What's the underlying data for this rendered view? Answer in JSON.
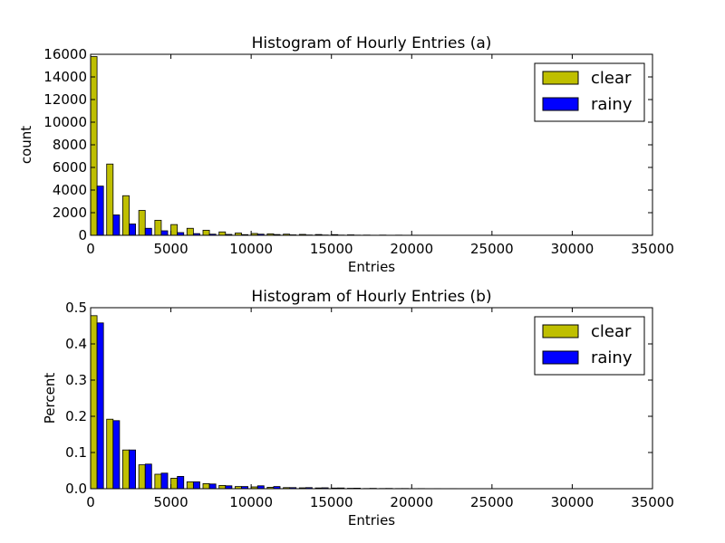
{
  "colors": {
    "clear": "#bfbf00",
    "rainy": "#0000ff",
    "background": "#ffffff",
    "axis": "#000000"
  },
  "chart_data": [
    {
      "type": "bar",
      "title": "Histogram of Hourly Entries (a)",
      "xlabel": "Entries",
      "ylabel": "count",
      "xlim": [
        0,
        35000
      ],
      "ylim": [
        0,
        16000
      ],
      "xticks": [
        "0",
        "5000",
        "10000",
        "15000",
        "20000",
        "25000",
        "30000",
        "35000"
      ],
      "xtick_values": [
        0,
        5000,
        10000,
        15000,
        20000,
        25000,
        30000,
        35000
      ],
      "yticks": [
        "0",
        "2000",
        "4000",
        "6000",
        "8000",
        "10000",
        "12000",
        "14000",
        "16000"
      ],
      "ytick_values": [
        0,
        2000,
        4000,
        6000,
        8000,
        10000,
        12000,
        14000,
        16000
      ],
      "grid": false,
      "legend_position": "top-right",
      "bin_width": 1000,
      "bin_starts": [
        0,
        1000,
        2000,
        3000,
        4000,
        5000,
        6000,
        7000,
        8000,
        9000,
        10000,
        11000,
        12000,
        13000,
        14000,
        15000,
        16000,
        17000,
        18000,
        19000,
        20000,
        21000,
        22000,
        23000,
        24000,
        25000,
        26000,
        27000,
        28000,
        29000,
        30000,
        31000,
        32000
      ],
      "series": [
        {
          "name": "clear",
          "color_key": "clear",
          "values": [
            15800,
            6300,
            3500,
            2200,
            1330,
            950,
            620,
            450,
            300,
            200,
            160,
            130,
            100,
            80,
            70,
            60,
            40,
            20,
            20,
            15,
            10,
            8,
            6,
            5,
            4,
            3,
            3,
            2,
            2,
            2,
            1,
            1,
            1
          ]
        },
        {
          "name": "rainy",
          "color_key": "rainy",
          "values": [
            4350,
            1800,
            1000,
            620,
            400,
            240,
            150,
            100,
            80,
            60,
            100,
            70,
            40,
            30,
            25,
            20,
            15,
            10,
            8,
            6,
            4,
            3,
            3,
            2,
            2,
            1,
            1,
            1,
            1,
            0,
            0,
            0,
            0
          ]
        }
      ]
    },
    {
      "type": "bar",
      "title": "Histogram of Hourly Entries (b)",
      "xlabel": "Entries",
      "ylabel": "Percent",
      "xlim": [
        0,
        35000
      ],
      "ylim": [
        0,
        0.5
      ],
      "xticks": [
        "0",
        "5000",
        "10000",
        "15000",
        "20000",
        "25000",
        "30000",
        "35000"
      ],
      "xtick_values": [
        0,
        5000,
        10000,
        15000,
        20000,
        25000,
        30000,
        35000
      ],
      "yticks": [
        "0.0",
        "0.1",
        "0.2",
        "0.3",
        "0.4",
        "0.5"
      ],
      "ytick_values": [
        0,
        0.1,
        0.2,
        0.3,
        0.4,
        0.5
      ],
      "grid": false,
      "legend_position": "top-right",
      "bin_width": 1000,
      "bin_starts": [
        0,
        1000,
        2000,
        3000,
        4000,
        5000,
        6000,
        7000,
        8000,
        9000,
        10000,
        11000,
        12000,
        13000,
        14000,
        15000,
        16000,
        17000,
        18000,
        19000,
        20000,
        21000,
        22000,
        23000,
        24000,
        25000,
        26000,
        27000,
        28000,
        29000,
        30000,
        31000,
        32000
      ],
      "series": [
        {
          "name": "clear",
          "color_key": "clear",
          "values": [
            0.478,
            0.192,
            0.107,
            0.066,
            0.04,
            0.029,
            0.019,
            0.014,
            0.009,
            0.006,
            0.005,
            0.004,
            0.003,
            0.0024,
            0.0021,
            0.0018,
            0.0012,
            0.0006,
            0.0006,
            0.0005,
            0.0003,
            0.0002,
            0.0002,
            0.0002,
            0.0001,
            0.0001,
            0.0001,
            0.0001,
            0.0001,
            0.0001,
            0,
            0,
            0
          ]
        },
        {
          "name": "rainy",
          "color_key": "rainy",
          "values": [
            0.458,
            0.188,
            0.107,
            0.068,
            0.043,
            0.034,
            0.019,
            0.013,
            0.008,
            0.006,
            0.008,
            0.006,
            0.003,
            0.003,
            0.0025,
            0.002,
            0.0015,
            0.001,
            0.0008,
            0.0006,
            0.0004,
            0.0003,
            0.0003,
            0.0002,
            0.0002,
            0.0001,
            0.0001,
            0.0001,
            0.0001,
            0,
            0,
            0,
            0
          ]
        }
      ]
    }
  ]
}
